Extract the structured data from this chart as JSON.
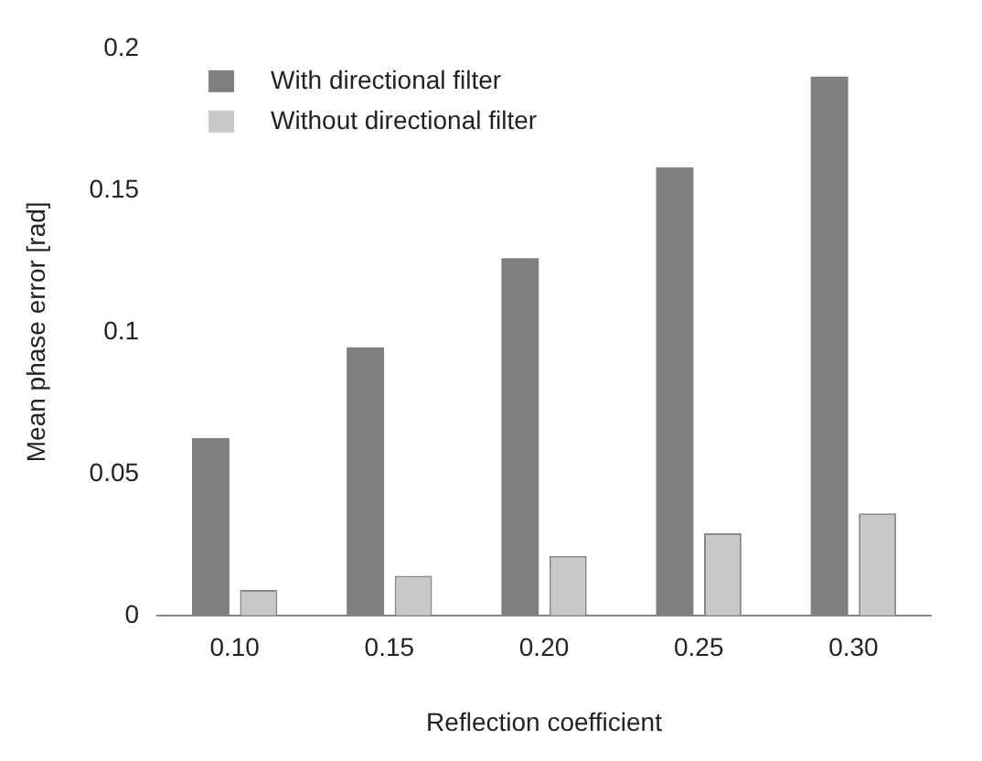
{
  "chart_data": {
    "type": "bar",
    "xlabel": "Reflection coefficient",
    "ylabel": "Mean phase error [rad]",
    "categories": [
      "0.10",
      "0.15",
      "0.20",
      "0.25",
      "0.30"
    ],
    "series": [
      {
        "name": "With directional filter",
        "color": "#7f7f80",
        "values": [
          0.0625,
          0.0945,
          0.126,
          0.158,
          0.19
        ]
      },
      {
        "name": "Without directional filter",
        "color": "#c8c8c8",
        "values": [
          0.009,
          0.014,
          0.021,
          0.029,
          0.036
        ]
      }
    ],
    "ylim": [
      0,
      0.2
    ],
    "yticks": [
      0,
      0.05,
      0.1,
      0.15,
      0.2
    ],
    "grid": false,
    "legend": "top left"
  }
}
